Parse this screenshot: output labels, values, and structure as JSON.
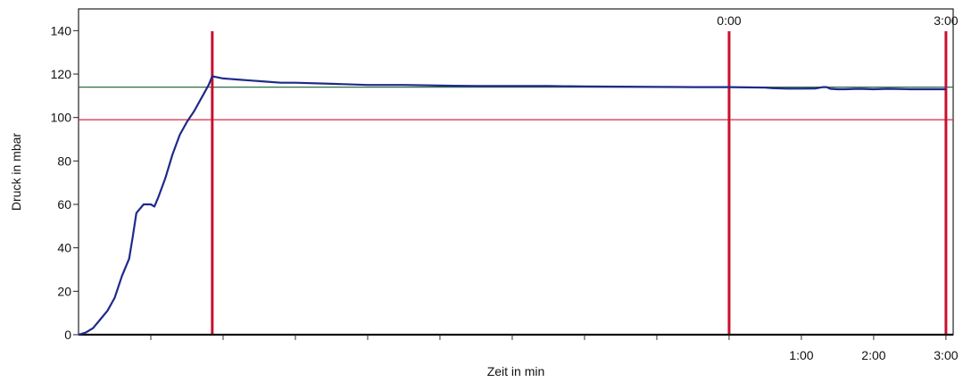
{
  "chart_data": {
    "type": "line",
    "xlabel": "Zeit in min",
    "ylabel": "Druck in mbar",
    "ylim": [
      0,
      150
    ],
    "yticks": [
      0,
      20,
      40,
      60,
      80,
      100,
      120,
      140
    ],
    "xlim": [
      -9.0,
      3.1
    ],
    "x_tick_labels": [
      {
        "x": 1,
        "label": "1:00"
      },
      {
        "x": 2,
        "label": "2:00"
      },
      {
        "x": 3,
        "label": "3:00"
      }
    ],
    "x_minor_ticks": [
      -8,
      -7,
      -6,
      -5,
      -4,
      -3,
      -2,
      -1,
      0,
      1,
      2,
      3
    ],
    "grid": false,
    "series": [
      {
        "color": "#1f2a8a",
        "x": [
          -9.0,
          -8.9,
          -8.8,
          -8.7,
          -8.6,
          -8.5,
          -8.4,
          -8.3,
          -8.25,
          -8.2,
          -8.1,
          -8.0,
          -7.95,
          -7.9,
          -7.8,
          -7.7,
          -7.6,
          -7.5,
          -7.4,
          -7.3,
          -7.2,
          -7.15,
          -7.0,
          -6.8,
          -6.6,
          -6.4,
          -6.2,
          -6.0,
          -5.5,
          -5.0,
          -4.5,
          -4.0,
          -3.5,
          -3.0,
          -2.5,
          -2.0,
          -1.5,
          -1.0,
          -0.5,
          0.0,
          0.5,
          0.6,
          0.8,
          1.0,
          1.2,
          1.3,
          1.35,
          1.4,
          1.5,
          1.6,
          1.8,
          2.0,
          2.2,
          2.5,
          2.8,
          3.0
        ],
        "y": [
          0,
          1,
          3,
          7,
          11,
          17,
          27,
          35,
          45,
          56,
          60,
          60,
          59,
          63,
          72,
          83,
          92,
          98,
          103,
          109,
          115,
          119,
          118,
          117.5,
          117,
          116.5,
          116,
          116,
          115.5,
          115,
          115,
          114.7,
          114.5,
          114.5,
          114.5,
          114.3,
          114.2,
          114.1,
          114,
          114,
          113.8,
          113.5,
          113.3,
          113.3,
          113.4,
          114,
          114,
          113.2,
          113,
          113,
          113.2,
          113,
          113.2,
          113,
          113,
          113
        ]
      }
    ],
    "reference_lines": [
      {
        "axis": "y",
        "value": 114,
        "color": "#2e6b46"
      },
      {
        "axis": "y",
        "value": 99,
        "color": "#d4294e"
      }
    ],
    "markers": [
      {
        "x": -7.15,
        "label": "",
        "color": "#c8102e"
      },
      {
        "x": 0.0,
        "label": "0:00",
        "color": "#c8102e"
      },
      {
        "x": 3.0,
        "label": "3:00",
        "color": "#c8102e"
      }
    ]
  }
}
